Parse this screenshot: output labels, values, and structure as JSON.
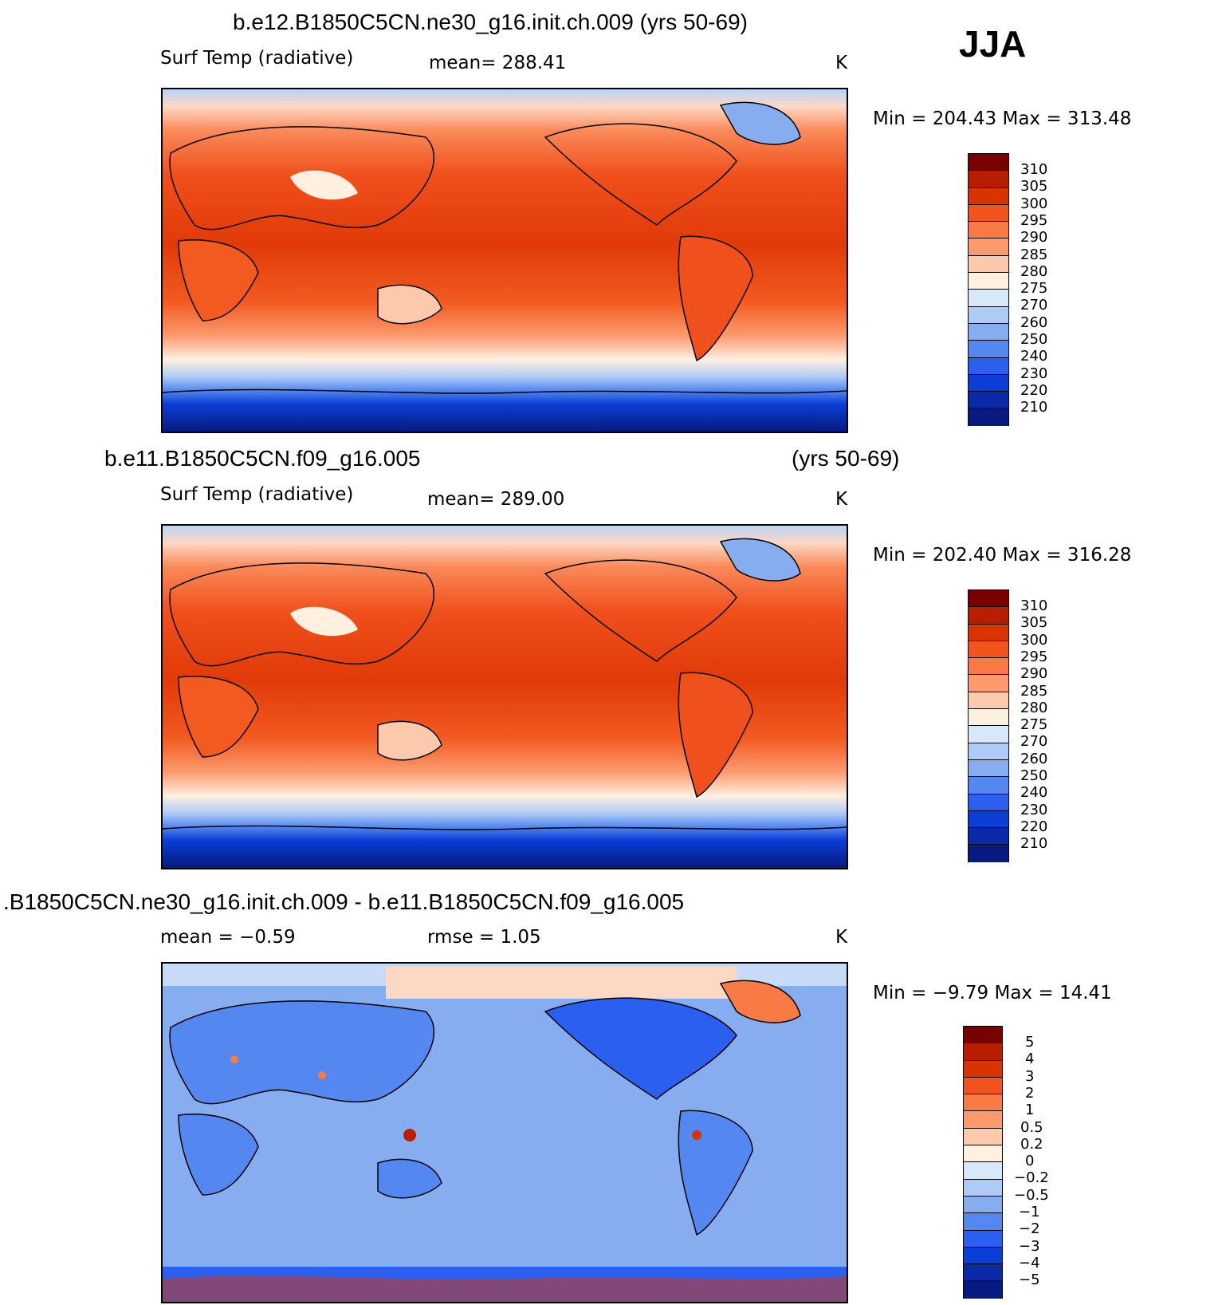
{
  "season": "JJA",
  "panels": [
    {
      "title": "b.e12.B1850C5CN.ne30_g16.init.ch.009 (yrs 50-69)",
      "title_years": "",
      "left_label": "Surf Temp (radiative)",
      "center_label": "mean= 288.41",
      "units": "K",
      "minmax": "Min = 204.43 Max = 313.48",
      "colorbar_ticks": [
        "310",
        "305",
        "300",
        "295",
        "290",
        "285",
        "280",
        "275",
        "270",
        "260",
        "250",
        "240",
        "230",
        "220",
        "210"
      ]
    },
    {
      "title": "b.e11.B1850C5CN.f09_g16.005",
      "title_years": "(yrs 50-69)",
      "left_label": "Surf Temp (radiative)",
      "center_label": "mean= 289.00",
      "units": "K",
      "minmax": "Min = 202.40 Max = 316.28",
      "colorbar_ticks": [
        "310",
        "305",
        "300",
        "295",
        "290",
        "285",
        "280",
        "275",
        "270",
        "260",
        "250",
        "240",
        "230",
        "220",
        "210"
      ]
    },
    {
      "title": ".B1850C5CN.ne30_g16.init.ch.009 - b.e11.B1850C5CN.f09_g16.005",
      "title_years": "",
      "left_label": "mean = −0.59",
      "center_label": "rmse = 1.05",
      "units": "K",
      "minmax": "Min = −9.79 Max = 14.41",
      "colorbar_ticks": [
        "5",
        "4",
        "3",
        "2",
        "1",
        "0.5",
        "0.2",
        "0",
        "−0.2",
        "−0.5",
        "−1",
        "−2",
        "−3",
        "−4",
        "−5"
      ]
    }
  ],
  "colors": {
    "abs_scale": [
      "#7a0000",
      "#b81d00",
      "#d93300",
      "#f2541d",
      "#fa7a45",
      "#fc9a6e",
      "#fdc9ad",
      "#fff0e0",
      "#d6e8fa",
      "#aecbf5",
      "#86adf0",
      "#5488f0",
      "#2a5ff0",
      "#0a3ed6",
      "#0a2aa8",
      "#061a80"
    ],
    "diff_scale": [
      "#7a0000",
      "#b81d00",
      "#d93300",
      "#f2541d",
      "#fa7a45",
      "#fc9a6e",
      "#fdc9ad",
      "#fff0e0",
      "#d6e8fa",
      "#aecbf5",
      "#86adf0",
      "#5488f0",
      "#2a5ff0",
      "#0a3ed6",
      "#0a2aa8",
      "#061a80"
    ]
  }
}
